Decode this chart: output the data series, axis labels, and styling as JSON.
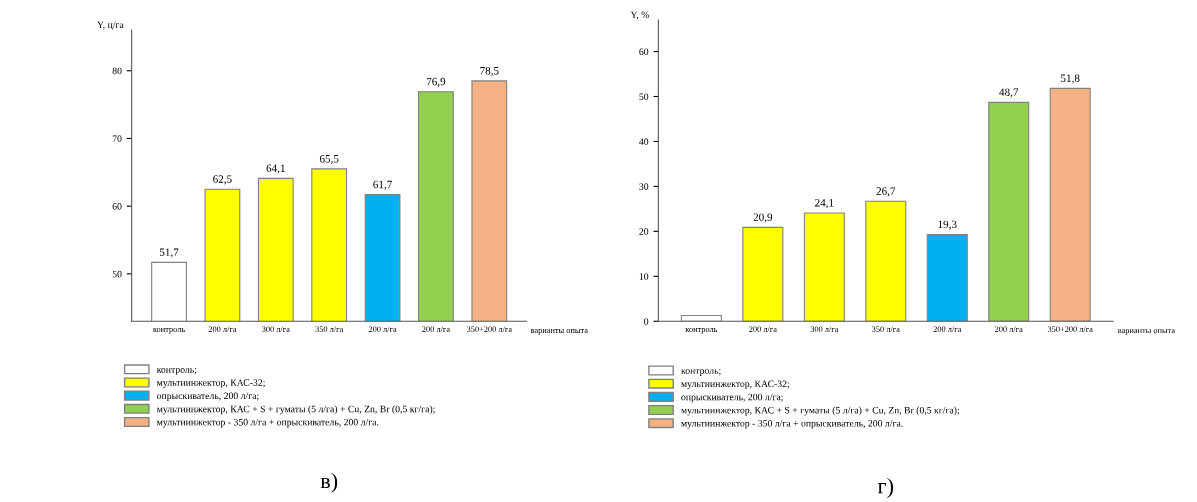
{
  "chart_data": [
    {
      "type": "bar",
      "ylabel": "Y, ц/га",
      "xlabel": "варианты опыта",
      "categories": [
        "контроль",
        "200 л/га",
        "300 л/га",
        "350 л/га",
        "200 л/га",
        "200 л/га",
        "350+200 л/га"
      ],
      "ylim": [
        43,
        86
      ],
      "yticks": [
        50,
        60,
        70,
        80
      ],
      "grid": false,
      "legend": "bottom",
      "series": [
        {
          "name": "контроль;",
          "color": "#ffffff",
          "values": [
            51.7,
            null,
            null,
            null,
            null,
            null,
            null
          ],
          "value_labels": [
            "51,7",
            null,
            null,
            null,
            null,
            null,
            null
          ]
        },
        {
          "name": "мультиинжектор, КАС-32;",
          "color": "#ffff00",
          "values": [
            null,
            62.5,
            64.1,
            65.5,
            null,
            null,
            null
          ],
          "value_labels": [
            null,
            "62,5",
            "64,1",
            "65,5",
            null,
            null,
            null
          ]
        },
        {
          "name": "опрыскиватель, 200 л/га;",
          "color": "#00b0f0",
          "values": [
            null,
            null,
            null,
            null,
            61.7,
            null,
            null
          ],
          "value_labels": [
            null,
            null,
            null,
            null,
            "61,7",
            null,
            null
          ]
        },
        {
          "name": "мультиинжектор, КАС + S + гуматы (5 л/га) + Cu, Zn, Br (0,5 кг/га);",
          "color": "#92d050",
          "values": [
            null,
            null,
            null,
            null,
            null,
            76.9,
            null
          ],
          "value_labels": [
            null,
            null,
            null,
            null,
            null,
            "76,9",
            null
          ]
        },
        {
          "name": "мультиинжектор - 350 л/га + опрыскиватель, 200 л/га.",
          "color": "#f4b183",
          "values": [
            null,
            null,
            null,
            null,
            null,
            null,
            78.5
          ],
          "value_labels": [
            null,
            null,
            null,
            null,
            null,
            null,
            "78,5"
          ]
        }
      ],
      "annotations": [
        "в)"
      ]
    },
    {
      "type": "bar",
      "ylabel": "Y, %",
      "xlabel": "варианты опыта",
      "categories": [
        "контроль",
        "200 л/га",
        "300 л/га",
        "350 л/га",
        "200 л/га",
        "200 л/га",
        "350+200 л/га"
      ],
      "ylim": [
        0,
        67
      ],
      "yticks": [
        0,
        10,
        20,
        30,
        40,
        50,
        60
      ],
      "grid": false,
      "legend": "bottom",
      "series": [
        {
          "name": "контроль;",
          "color": "#ffffff",
          "values": [
            1.3,
            null,
            null,
            null,
            null,
            null,
            null
          ],
          "value_labels": [
            null,
            null,
            null,
            null,
            null,
            null,
            null
          ]
        },
        {
          "name": "мультиинжектор, КАС-32;",
          "color": "#ffff00",
          "values": [
            null,
            20.9,
            24.1,
            26.7,
            null,
            null,
            null
          ],
          "value_labels": [
            null,
            "20,9",
            "24,1",
            "26,7",
            null,
            null,
            null
          ]
        },
        {
          "name": "опрыскиватель, 200 л/га;",
          "color": "#00b0f0",
          "values": [
            null,
            null,
            null,
            null,
            19.3,
            null,
            null
          ],
          "value_labels": [
            null,
            null,
            null,
            null,
            "19,3",
            null,
            null
          ]
        },
        {
          "name": "мультиинжектор, КАС + S + гуматы (5 л/га) + Cu, Zn, Br (0,5 кг/га);",
          "color": "#92d050",
          "values": [
            null,
            null,
            null,
            null,
            null,
            48.7,
            null
          ],
          "value_labels": [
            null,
            null,
            null,
            null,
            null,
            "48,7",
            null
          ]
        },
        {
          "name": "мультиинжектор - 350 л/га + опрыскиватель, 200 л/га.",
          "color": "#f4b183",
          "values": [
            null,
            null,
            null,
            null,
            null,
            null,
            51.8
          ],
          "value_labels": [
            null,
            null,
            null,
            null,
            null,
            null,
            "51,8"
          ]
        }
      ],
      "annotations": [
        "г)"
      ]
    }
  ]
}
